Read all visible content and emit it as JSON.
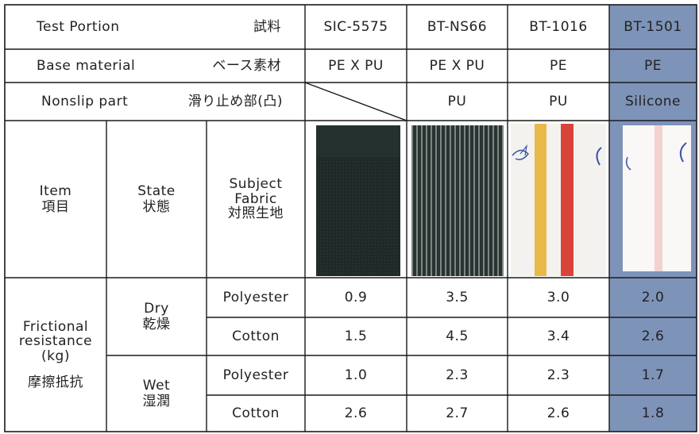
{
  "header": {
    "test_portion_en": "Test Portion",
    "test_portion_jp": "試料",
    "base_material_en": "Base material",
    "base_material_jp": "ベース素材",
    "nonslip_en": "Nonslip part",
    "nonslip_jp": "滑り止め部(凸)"
  },
  "products": [
    {
      "name": "SIC-5575",
      "base": "PE X PU",
      "nonslip": ""
    },
    {
      "name": "BT-NS66",
      "base": "PE X PU",
      "nonslip": "PU"
    },
    {
      "name": "BT-1016",
      "base": "PE",
      "nonslip": "PU"
    },
    {
      "name": "BT-1501",
      "base": "PE",
      "nonslip": "Silicone"
    }
  ],
  "row_labels": {
    "item_en": "Item",
    "item_jp": "項目",
    "state_en": "State",
    "state_jp": "状態",
    "subject_line1": "Subject",
    "subject_line2": "Fabric",
    "subject_jp": "対照生地",
    "friction_line1": "Frictional",
    "friction_line2": "resistance",
    "friction_unit": "(kg)",
    "friction_jp": "摩擦抵抗",
    "dry_en": "Dry",
    "dry_jp": "乾燥",
    "wet_en": "Wet",
    "wet_jp": "湿潤",
    "polyester": "Polyester",
    "cotton": "Cotton"
  },
  "values": {
    "dry_polyester": [
      "0.9",
      "3.5",
      "3.0",
      "2.0"
    ],
    "dry_cotton": [
      "1.5",
      "4.5",
      "3.4",
      "2.6"
    ],
    "wet_polyester": [
      "1.0",
      "2.3",
      "2.3",
      "1.7"
    ],
    "wet_cotton": [
      "2.6",
      "2.7",
      "2.6",
      "1.8"
    ]
  },
  "colors": {
    "highlight": "#7e93b8",
    "line": "#1a1a1a"
  },
  "swatch_icons": [
    "dark-knit-swatch-icon",
    "striped-ribbed-swatch-icon",
    "yellow-red-stripe-swatch-icon",
    "pale-pink-stripe-swatch-icon"
  ]
}
